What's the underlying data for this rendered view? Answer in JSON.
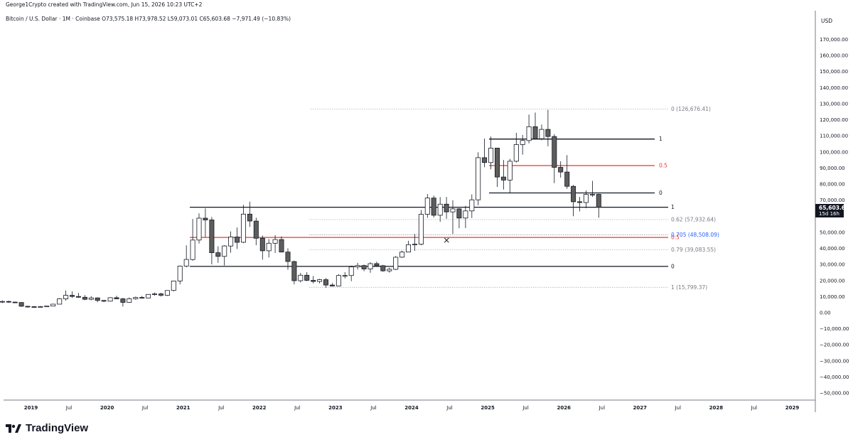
{
  "header": {
    "text": "George1Crypto created with TradingView.com, Jun 15, 2026 10:23 UTC+2"
  },
  "legend": {
    "text": "Bitcoin / U.S. Dollar · 1M · Coinbase  O73,575.18  H73,978.52  L59,073.01  C65,603.68  −7,971.49 (−10.83%)"
  },
  "footer": {
    "brand": "TradingView"
  },
  "price_scale": {
    "currency": "USD",
    "last_price": "65,603.68",
    "countdown": "15d 16h"
  },
  "colors": {
    "bull_fill": "#ffffff",
    "bear_fill": "#5d5d5d",
    "candle_border": "#131722",
    "fib_mid": "#e53935",
    "fib_0705": "#2962ff",
    "grid_axis": "#787b86",
    "guide_dots": "#b2b5be"
  },
  "chart_data": {
    "type": "candlestick",
    "title": "Bitcoin / U.S. Dollar · 1M · Coinbase",
    "ylim": [
      -55000,
      180000
    ],
    "y_ticks": [
      {
        "value": 170000,
        "label": "170,000.00"
      },
      {
        "value": 160000,
        "label": "160,000.00"
      },
      {
        "value": 150000,
        "label": "150,000.00"
      },
      {
        "value": 140000,
        "label": "140,000.00"
      },
      {
        "value": 130000,
        "label": "130,000.00"
      },
      {
        "value": 120000,
        "label": "120,000.00"
      },
      {
        "value": 110000,
        "label": "110,000.00"
      },
      {
        "value": 100000,
        "label": "100,000.00"
      },
      {
        "value": 90000,
        "label": "90,000.00"
      },
      {
        "value": 80000,
        "label": "80,000.00"
      },
      {
        "value": 70000,
        "label": "70,000.00"
      },
      {
        "value": 50000,
        "label": "50,000.00"
      },
      {
        "value": 40000,
        "label": "40,000.00"
      },
      {
        "value": 30000,
        "label": "30,000.00"
      },
      {
        "value": 20000,
        "label": "20,000.00"
      },
      {
        "value": 10000,
        "label": "10,000.00"
      },
      {
        "value": 0,
        "label": "0.00"
      },
      {
        "value": -10000,
        "label": "−10,000.00"
      },
      {
        "value": -20000,
        "label": "−20,000.00"
      },
      {
        "value": -30000,
        "label": "−30,000.00"
      },
      {
        "value": -40000,
        "label": "−40,000.00"
      },
      {
        "value": -50000,
        "label": "−50,000.00"
      }
    ],
    "x_ticks": [
      {
        "label": "2019",
        "t": 2019.0,
        "bold": true
      },
      {
        "label": "Jul",
        "t": 2019.5,
        "bold": false
      },
      {
        "label": "2020",
        "t": 2020.0,
        "bold": true
      },
      {
        "label": "Jul",
        "t": 2020.5,
        "bold": false
      },
      {
        "label": "2021",
        "t": 2021.0,
        "bold": true
      },
      {
        "label": "Jul",
        "t": 2021.5,
        "bold": false
      },
      {
        "label": "2022",
        "t": 2022.0,
        "bold": true
      },
      {
        "label": "Jul",
        "t": 2022.5,
        "bold": false
      },
      {
        "label": "2023",
        "t": 2023.0,
        "bold": true
      },
      {
        "label": "Jul",
        "t": 2023.5,
        "bold": false
      },
      {
        "label": "2024",
        "t": 2024.0,
        "bold": true
      },
      {
        "label": "Jul",
        "t": 2024.5,
        "bold": false
      },
      {
        "label": "2025",
        "t": 2025.0,
        "bold": true
      },
      {
        "label": "Jul",
        "t": 2025.5,
        "bold": false
      },
      {
        "label": "2026",
        "t": 2026.0,
        "bold": true
      },
      {
        "label": "Jul",
        "t": 2026.5,
        "bold": false
      },
      {
        "label": "2027",
        "t": 2027.0,
        "bold": true
      },
      {
        "label": "Jul",
        "t": 2027.5,
        "bold": false
      },
      {
        "label": "2028",
        "t": 2028.0,
        "bold": true
      },
      {
        "label": "Jul",
        "t": 2028.5,
        "bold": false
      },
      {
        "label": "2029",
        "t": 2029.0,
        "bold": true
      }
    ],
    "first_candle": "2018-07",
    "candles": [
      [
        7500,
        8400,
        5900,
        7000
      ],
      [
        7000,
        7700,
        6000,
        7000
      ],
      [
        7000,
        7400,
        6100,
        6600
      ],
      [
        6600,
        6800,
        6100,
        6300
      ],
      [
        6300,
        6600,
        3600,
        4000
      ],
      [
        4000,
        4200,
        3200,
        3700
      ],
      [
        3700,
        4100,
        3400,
        3450
      ],
      [
        3450,
        4200,
        3400,
        3800
      ],
      [
        3800,
        4100,
        3700,
        4100
      ],
      [
        4100,
        5400,
        4000,
        5300
      ],
      [
        5300,
        9000,
        5200,
        8600
      ],
      [
        8600,
        13800,
        7500,
        10800
      ],
      [
        10800,
        13200,
        9100,
        10100
      ],
      [
        10100,
        12300,
        9400,
        9600
      ],
      [
        9600,
        10900,
        7800,
        8300
      ],
      [
        8300,
        10300,
        7700,
        9200
      ],
      [
        9200,
        9500,
        6500,
        7600
      ],
      [
        7600,
        7800,
        6500,
        7200
      ],
      [
        7200,
        9600,
        6900,
        9350
      ],
      [
        9350,
        10500,
        8400,
        8600
      ],
      [
        8600,
        9200,
        3800,
        6400
      ],
      [
        6400,
        9500,
        6200,
        8650
      ],
      [
        8650,
        10000,
        8100,
        9450
      ],
      [
        9450,
        10400,
        8900,
        9150
      ],
      [
        9150,
        11400,
        9000,
        11350
      ],
      [
        11350,
        12500,
        10500,
        11650
      ],
      [
        11650,
        12400,
        10000,
        10800
      ],
      [
        10800,
        13900,
        10400,
        13800
      ],
      [
        13800,
        19900,
        13200,
        19700
      ],
      [
        19700,
        29300,
        17600,
        29000
      ],
      [
        29000,
        41900,
        28200,
        33100
      ],
      [
        33100,
        58300,
        32300,
        45200
      ],
      [
        45200,
        61800,
        43000,
        58800
      ],
      [
        58800,
        64900,
        47000,
        57700
      ],
      [
        57700,
        59500,
        30000,
        37300
      ],
      [
        37300,
        41300,
        31000,
        35000
      ],
      [
        35000,
        42000,
        29300,
        41500
      ],
      [
        41500,
        50500,
        37300,
        47100
      ],
      [
        47100,
        52900,
        39600,
        43800
      ],
      [
        43800,
        67000,
        43300,
        61300
      ],
      [
        61300,
        69000,
        53300,
        57000
      ],
      [
        57000,
        59100,
        42000,
        46300
      ],
      [
        46300,
        48000,
        33000,
        38500
      ],
      [
        38500,
        45800,
        34300,
        43200
      ],
      [
        43200,
        48200,
        37200,
        45500
      ],
      [
        45500,
        47500,
        37700,
        37700
      ],
      [
        37700,
        40000,
        26700,
        31800
      ],
      [
        31800,
        32400,
        17600,
        19900
      ],
      [
        19900,
        24700,
        18800,
        23300
      ],
      [
        23300,
        25200,
        19600,
        20100
      ],
      [
        20100,
        22800,
        18200,
        19400
      ],
      [
        19400,
        21000,
        18200,
        20500
      ],
      [
        20500,
        21500,
        15500,
        17200
      ],
      [
        17200,
        18400,
        16300,
        16600
      ],
      [
        16600,
        23900,
        16500,
        23100
      ],
      [
        23100,
        25200,
        21300,
        23100
      ],
      [
        23100,
        29200,
        19600,
        28500
      ],
      [
        28500,
        31000,
        26900,
        29300
      ],
      [
        29300,
        29900,
        25800,
        27200
      ],
      [
        27200,
        31400,
        24800,
        30500
      ],
      [
        30500,
        31800,
        28900,
        29200
      ],
      [
        29200,
        29700,
        25400,
        26000
      ],
      [
        26000,
        28000,
        24900,
        27000
      ],
      [
        27000,
        35200,
        26500,
        34500
      ],
      [
        34500,
        38500,
        34100,
        37700
      ],
      [
        37700,
        44700,
        37600,
        42300
      ],
      [
        42300,
        48900,
        38500,
        42600
      ],
      [
        42600,
        63900,
        41900,
        61200
      ],
      [
        61200,
        73800,
        59000,
        71300
      ],
      [
        71300,
        72800,
        59200,
        60600
      ],
      [
        60600,
        71900,
        56500,
        67500
      ],
      [
        67500,
        72000,
        58400,
        62700
      ],
      [
        62700,
        70000,
        49000,
        64600
      ],
      [
        64600,
        65000,
        52500,
        58900
      ],
      [
        58900,
        66500,
        52600,
        63300
      ],
      [
        63300,
        73600,
        58900,
        70200
      ],
      [
        70200,
        99800,
        66800,
        96400
      ],
      [
        96400,
        108300,
        90500,
        93400
      ],
      [
        93400,
        109600,
        89200,
        102400
      ],
      [
        102400,
        102500,
        78200,
        84400
      ],
      [
        84400,
        95000,
        76600,
        82500
      ],
      [
        82500,
        95700,
        74400,
        94200
      ],
      [
        94200,
        111900,
        93400,
        104600
      ],
      [
        104600,
        110500,
        98300,
        107100
      ],
      [
        107100,
        123200,
        105300,
        115700
      ],
      [
        115700,
        124500,
        108700,
        108200
      ],
      [
        108200,
        117000,
        107300,
        114000
      ],
      [
        114000,
        126200,
        103500,
        109600
      ],
      [
        109600,
        111000,
        80600,
        90400
      ],
      [
        90400,
        94200,
        84000,
        87500
      ],
      [
        87500,
        98000,
        77000,
        78600
      ],
      [
        78600,
        79500,
        60000,
        69000
      ],
      [
        69000,
        72000,
        63000,
        68500
      ],
      [
        68500,
        76000,
        65000,
        73600
      ],
      [
        73600,
        82000,
        72000,
        73600
      ],
      [
        73600,
        73978,
        59073,
        65604
      ]
    ],
    "fib_top": {
      "levels": [
        {
          "label": "1",
          "value": 108000,
          "color": "#131722",
          "solid": true
        },
        {
          "label": "0.5",
          "value": 91500,
          "color": "#e53935",
          "solid": true
        },
        {
          "label": "0",
          "value": 74500,
          "color": "#131722",
          "solid": true
        }
      ]
    },
    "fib_bottom": {
      "levels": [
        {
          "label": "0 (126,676.41)",
          "value": 126676.41,
          "color": "#787b86",
          "solid": false
        },
        {
          "label": "1",
          "value": 65600,
          "color": "#131722",
          "solid": true
        },
        {
          "label": "0.62 (57,932.64)",
          "value": 57932.64,
          "color": "#787b86",
          "solid": false
        },
        {
          "label": "0.705 (48,508.09)",
          "value": 48508.09,
          "color": "#2962ff",
          "solid": false
        },
        {
          "label": "0.5",
          "value": 46800,
          "color": "#e53935",
          "solid": true
        },
        {
          "label": "0.79 (39,083.55)",
          "value": 39083.55,
          "color": "#787b86",
          "solid": false
        },
        {
          "label": "0",
          "value": 28800,
          "color": "#131722",
          "solid": true
        },
        {
          "label": "1 (15,799.37)",
          "value": 15799.37,
          "color": "#787b86",
          "solid": false
        }
      ]
    },
    "marker": {
      "symbol": "×",
      "t": 2024.46,
      "value": 45000
    }
  }
}
